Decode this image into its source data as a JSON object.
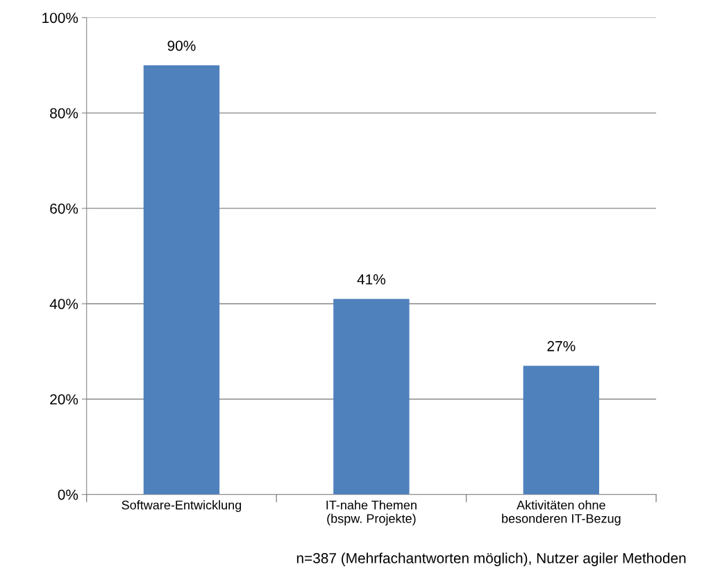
{
  "chart_data": {
    "type": "bar",
    "categories": [
      "Software-Entwicklung",
      "IT-nahe Themen\n(bspw. Projekte)",
      "Aktivitäten ohne\nbesonderen IT-Bezug"
    ],
    "values": [
      90,
      41,
      27
    ],
    "value_labels": [
      "90%",
      "41%",
      "27%"
    ],
    "color": "#4f81bd",
    "ylim": [
      0,
      100
    ],
    "yticks": [
      {
        "value": 0,
        "label": "0%"
      },
      {
        "value": 20,
        "label": "20%"
      },
      {
        "value": 40,
        "label": "40%"
      },
      {
        "value": 60,
        "label": "60%"
      },
      {
        "value": 80,
        "label": "80%"
      },
      {
        "value": 100,
        "label": "100%"
      }
    ],
    "grid": "y",
    "annotations": [
      "n=387 (Mehrfachantworten möglich), Nutzer agiler Methoden"
    ]
  }
}
